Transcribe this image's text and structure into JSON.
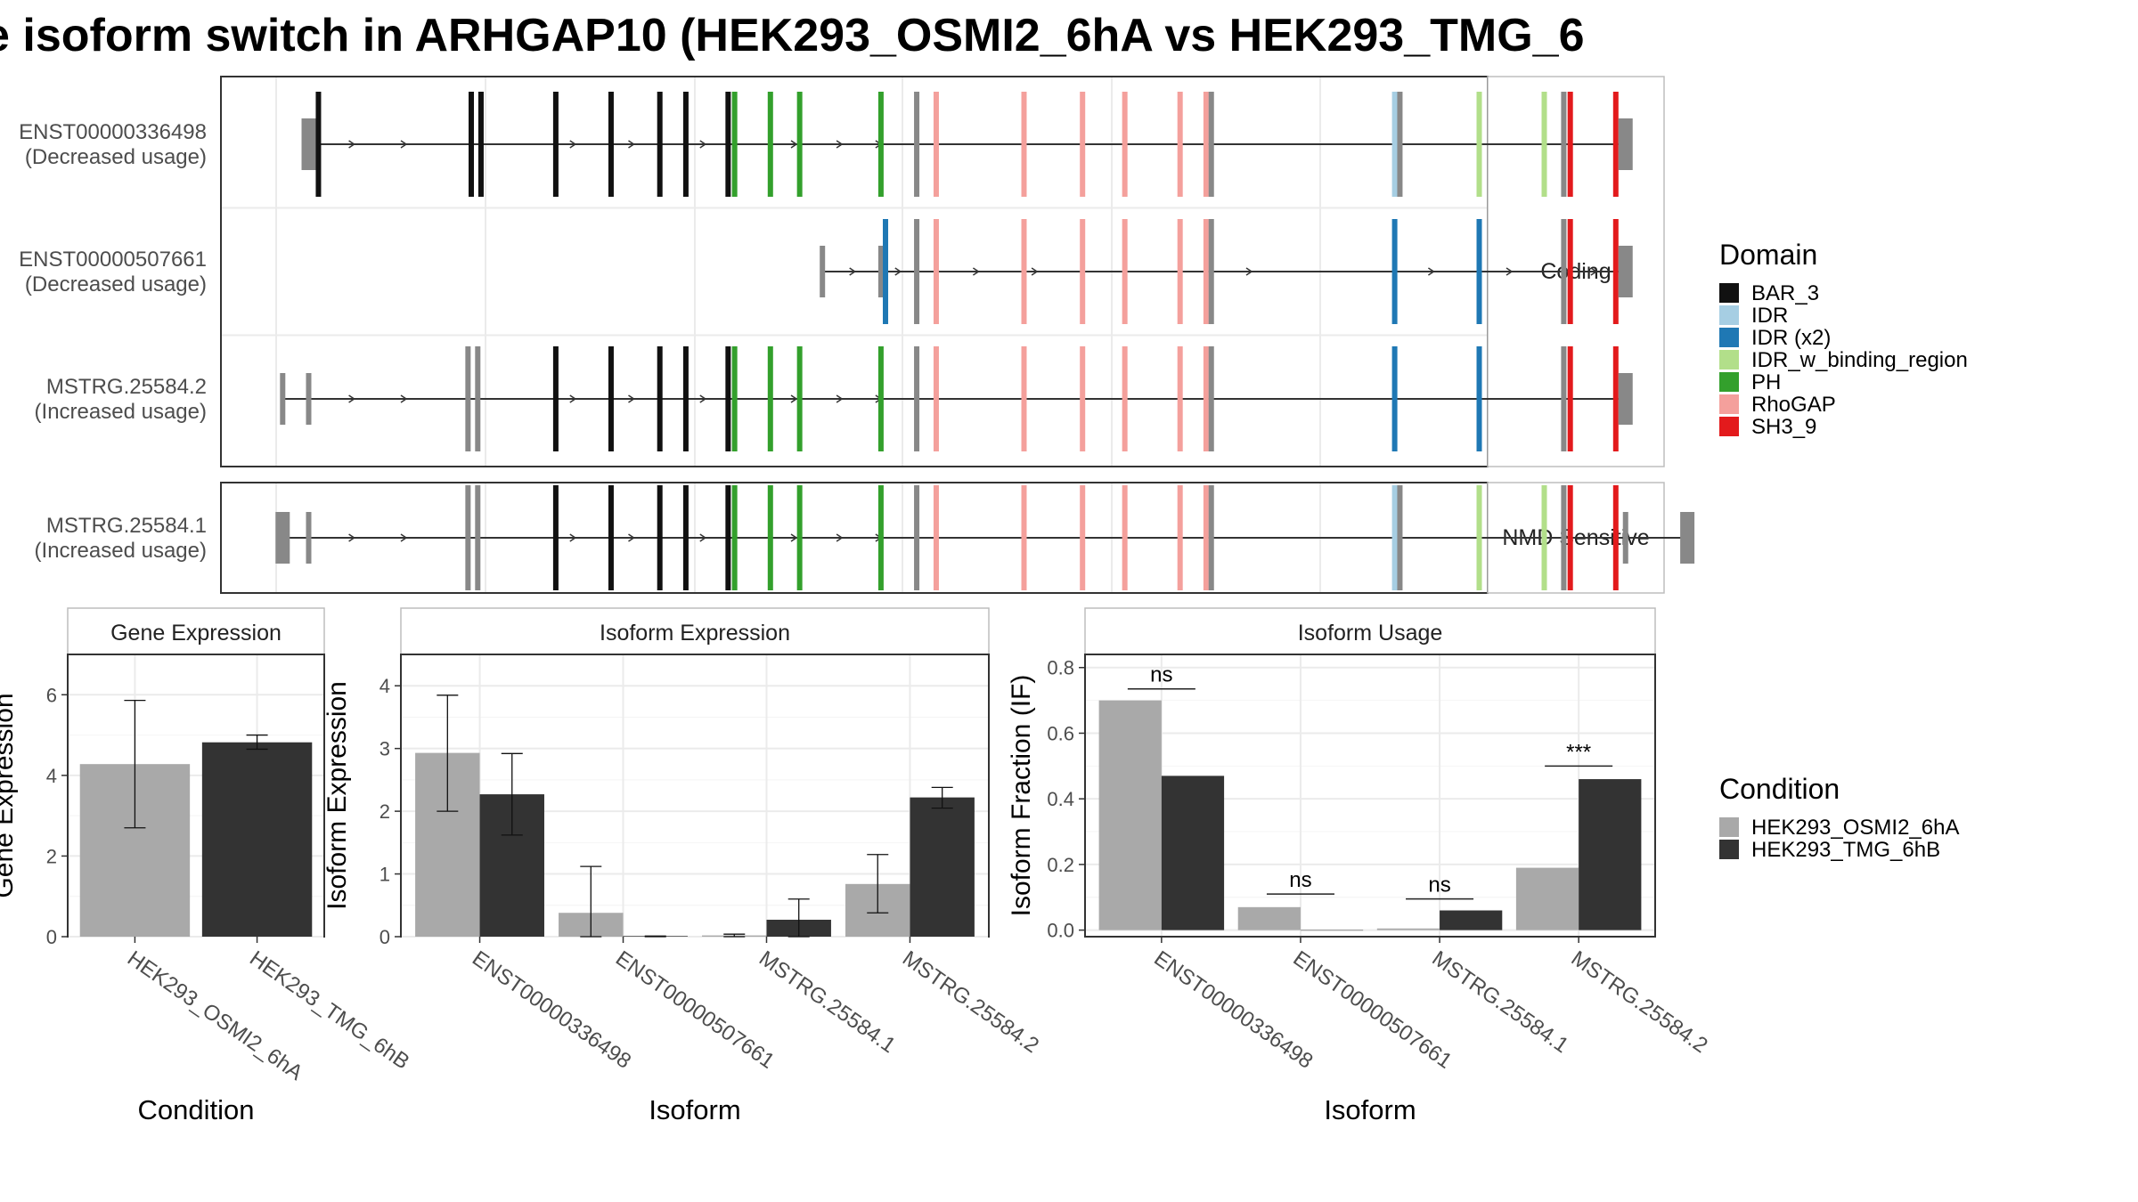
{
  "title": "e isoform switch in ARHGAP10 (HEK293_OSMI2_6hA vs HEK293_TMG_6",
  "colors": {
    "BAR_3": "#111111",
    "IDR": "#a6cee3",
    "IDR (x2)": "#1f78b4",
    "IDR_w_binding_region": "#b2df8a",
    "PH": "#33a02c",
    "RhoGAP": "#f4a09c",
    "SH3_9": "#e31a1c",
    "none": "#888888",
    "cond1": "#a9a9a9",
    "cond2": "#333333"
  },
  "structure": {
    "panels": [
      {
        "label": "Coding",
        "rows": [
          0,
          1,
          2
        ]
      },
      {
        "label": "NMD Sensitive",
        "rows": [
          3
        ]
      }
    ],
    "transcripts": [
      {
        "name": "ENST00000336498",
        "change": "(Decreased usage)",
        "start": 5,
        "end": 100,
        "arrows": [
          12,
          20,
          46,
          55,
          66,
          80,
          87,
          93
        ],
        "exons": [
          {
            "x": 5,
            "d": "none",
            "h": "utr"
          },
          {
            "x": 6.5,
            "d": "BAR_3"
          },
          {
            "x": 30,
            "d": "BAR_3"
          },
          {
            "x": 31.5,
            "d": "BAR_3"
          },
          {
            "x": 43,
            "d": "BAR_3"
          },
          {
            "x": 51.5,
            "d": "BAR_3"
          },
          {
            "x": 59,
            "d": "BAR_3"
          },
          {
            "x": 63,
            "d": "BAR_3"
          },
          {
            "x": 69.5,
            "d": "BAR_3"
          },
          {
            "x": 70.5,
            "d": "PH"
          },
          {
            "x": 76,
            "d": "PH"
          },
          {
            "x": 80.5,
            "d": "PH"
          },
          {
            "x": 93,
            "d": "PH"
          },
          {
            "x": 98.5,
            "d": "none"
          },
          {
            "x": 101.5,
            "d": "RhoGAP"
          },
          {
            "x": 115,
            "d": "RhoGAP"
          },
          {
            "x": 124,
            "d": "RhoGAP"
          },
          {
            "x": 130.5,
            "d": "RhoGAP"
          },
          {
            "x": 139,
            "d": "RhoGAP"
          },
          {
            "x": 143,
            "d": "RhoGAP"
          },
          {
            "x": 143.8,
            "d": "none"
          },
          {
            "x": 172,
            "d": "IDR"
          },
          {
            "x": 172.8,
            "d": "none"
          },
          {
            "x": 185,
            "d": "IDR_w_binding_region"
          },
          {
            "x": 195,
            "d": "IDR_w_binding_region"
          },
          {
            "x": 198,
            "d": "none"
          },
          {
            "x": 199,
            "d": "SH3_9"
          },
          {
            "x": 206,
            "d": "SH3_9"
          },
          {
            "x": 207.5,
            "d": "none",
            "h": "utr"
          }
        ]
      },
      {
        "name": "ENST00000507661",
        "change": "(Decreased usage)",
        "start": 84,
        "end": 100,
        "arrows": [
          89,
          96,
          108,
          117,
          150,
          178,
          190,
          203
        ],
        "exons": [
          {
            "x": 84,
            "d": "none",
            "h": "half"
          },
          {
            "x": 93,
            "d": "none",
            "h": "half"
          },
          {
            "x": 93.7,
            "d": "IDR (x2)"
          },
          {
            "x": 98.5,
            "d": "none"
          },
          {
            "x": 101.5,
            "d": "RhoGAP"
          },
          {
            "x": 115,
            "d": "RhoGAP"
          },
          {
            "x": 124,
            "d": "RhoGAP"
          },
          {
            "x": 130.5,
            "d": "RhoGAP"
          },
          {
            "x": 139,
            "d": "RhoGAP"
          },
          {
            "x": 143,
            "d": "RhoGAP"
          },
          {
            "x": 143.8,
            "d": "none"
          },
          {
            "x": 172,
            "d": "IDR (x2)"
          },
          {
            "x": 185,
            "d": "IDR (x2)"
          },
          {
            "x": 198,
            "d": "none"
          },
          {
            "x": 199,
            "d": "SH3_9"
          },
          {
            "x": 206,
            "d": "SH3_9"
          },
          {
            "x": 207.5,
            "d": "none",
            "h": "utr"
          }
        ]
      },
      {
        "name": "MSTRG.25584.2",
        "change": "(Increased usage)",
        "start": 1,
        "end": 100,
        "arrows": [
          12,
          20,
          46,
          55,
          66,
          80,
          87,
          93
        ],
        "exons": [
          {
            "x": 1,
            "d": "none",
            "h": "half"
          },
          {
            "x": 5,
            "d": "none",
            "h": "half"
          },
          {
            "x": 29.5,
            "d": "none"
          },
          {
            "x": 31,
            "d": "none"
          },
          {
            "x": 43,
            "d": "BAR_3"
          },
          {
            "x": 51.5,
            "d": "BAR_3"
          },
          {
            "x": 59,
            "d": "BAR_3"
          },
          {
            "x": 63,
            "d": "BAR_3"
          },
          {
            "x": 69.5,
            "d": "BAR_3"
          },
          {
            "x": 70.5,
            "d": "PH"
          },
          {
            "x": 76,
            "d": "PH"
          },
          {
            "x": 80.5,
            "d": "PH"
          },
          {
            "x": 93,
            "d": "PH"
          },
          {
            "x": 98.5,
            "d": "none"
          },
          {
            "x": 101.5,
            "d": "RhoGAP"
          },
          {
            "x": 115,
            "d": "RhoGAP"
          },
          {
            "x": 124,
            "d": "RhoGAP"
          },
          {
            "x": 130.5,
            "d": "RhoGAP"
          },
          {
            "x": 139,
            "d": "RhoGAP"
          },
          {
            "x": 143,
            "d": "RhoGAP"
          },
          {
            "x": 143.8,
            "d": "none"
          },
          {
            "x": 172,
            "d": "IDR (x2)"
          },
          {
            "x": 185,
            "d": "IDR (x2)"
          },
          {
            "x": 198,
            "d": "none"
          },
          {
            "x": 199,
            "d": "SH3_9"
          },
          {
            "x": 206,
            "d": "SH3_9"
          },
          {
            "x": 207.5,
            "d": "none",
            "h": "utr"
          }
        ]
      },
      {
        "name": "MSTRG.25584.1",
        "change": "(Increased usage)",
        "start": 1,
        "end": 100,
        "arrows": [
          12,
          20,
          46,
          55,
          66,
          80,
          87,
          93
        ],
        "exons": [
          {
            "x": 1,
            "d": "none",
            "h": "utr"
          },
          {
            "x": 5,
            "d": "none",
            "h": "half"
          },
          {
            "x": 29.5,
            "d": "none"
          },
          {
            "x": 31,
            "d": "none"
          },
          {
            "x": 43,
            "d": "BAR_3"
          },
          {
            "x": 51.5,
            "d": "BAR_3"
          },
          {
            "x": 59,
            "d": "BAR_3"
          },
          {
            "x": 63,
            "d": "BAR_3"
          },
          {
            "x": 69.5,
            "d": "BAR_3"
          },
          {
            "x": 70.5,
            "d": "PH"
          },
          {
            "x": 76,
            "d": "PH"
          },
          {
            "x": 80.5,
            "d": "PH"
          },
          {
            "x": 93,
            "d": "PH"
          },
          {
            "x": 98.5,
            "d": "none"
          },
          {
            "x": 101.5,
            "d": "RhoGAP"
          },
          {
            "x": 115,
            "d": "RhoGAP"
          },
          {
            "x": 124,
            "d": "RhoGAP"
          },
          {
            "x": 130.5,
            "d": "RhoGAP"
          },
          {
            "x": 139,
            "d": "RhoGAP"
          },
          {
            "x": 143,
            "d": "RhoGAP"
          },
          {
            "x": 143.8,
            "d": "none"
          },
          {
            "x": 172,
            "d": "IDR"
          },
          {
            "x": 172.8,
            "d": "none"
          },
          {
            "x": 185,
            "d": "IDR_w_binding_region"
          },
          {
            "x": 195,
            "d": "IDR_w_binding_region"
          },
          {
            "x": 198,
            "d": "none"
          },
          {
            "x": 199,
            "d": "SH3_9"
          },
          {
            "x": 206,
            "d": "SH3_9"
          },
          {
            "x": 207.5,
            "d": "none",
            "h": "half"
          },
          {
            "x": 217,
            "d": "none",
            "h": "utr"
          }
        ]
      }
    ]
  },
  "legend_domain": {
    "title": "Domain",
    "items": [
      "BAR_3",
      "IDR",
      "IDR (x2)",
      "IDR_w_binding_region",
      "PH",
      "RhoGAP",
      "SH3_9"
    ]
  },
  "legend_condition": {
    "title": "Condition",
    "items": [
      "HEK293_OSMI2_6hA",
      "HEK293_TMG_6hB"
    ]
  },
  "chart_data": [
    {
      "type": "bar",
      "title": "Gene Expression",
      "xlabel": "Condition",
      "ylabel": "Gene Expression",
      "ylim": [
        0,
        7
      ],
      "yticks": [
        0,
        2,
        4,
        6
      ],
      "categories": [
        "HEK293_OSMI2_6hA",
        "HEK293_TMG_6hB"
      ],
      "series": [
        {
          "name": "HEK293_OSMI2_6hA",
          "values": [
            4.28,
            null
          ],
          "err": [
            [
              2.7,
              5.86
            ],
            null
          ]
        },
        {
          "name": "HEK293_TMG_6hB",
          "values": [
            null,
            4.82
          ],
          "err": [
            null,
            [
              4.65,
              5.0
            ]
          ]
        }
      ]
    },
    {
      "type": "bar",
      "title": "Isoform Expression",
      "xlabel": "Isoform",
      "ylabel": "Isoform Expression",
      "ylim": [
        0,
        4.5
      ],
      "yticks": [
        0,
        1,
        2,
        3,
        4
      ],
      "categories": [
        "ENST00000336498",
        "ENST00000507661",
        "MSTRG.25584.1",
        "MSTRG.25584.2"
      ],
      "series": [
        {
          "name": "HEK293_OSMI2_6hA",
          "values": [
            2.93,
            0.38,
            0.02,
            0.84
          ],
          "err": [
            [
              2.0,
              3.85
            ],
            [
              0.0,
              1.12
            ],
            [
              0.0,
              0.04
            ],
            [
              0.38,
              1.31
            ]
          ]
        },
        {
          "name": "HEK293_TMG_6hB",
          "values": [
            2.27,
            0.01,
            0.27,
            2.22
          ],
          "err": [
            [
              1.62,
              2.92
            ],
            [
              0.0,
              0.01
            ],
            [
              0.0,
              0.6
            ],
            [
              2.05,
              2.38
            ]
          ]
        }
      ]
    },
    {
      "type": "bar",
      "title": "Isoform Usage",
      "xlabel": "Isoform",
      "ylabel": "Isoform Fraction (IF)",
      "ylim": [
        -0.02,
        0.84
      ],
      "yticks": [
        0.0,
        0.2,
        0.4,
        0.6,
        0.8
      ],
      "ytick_labels": [
        "0.0",
        "0.2",
        "0.4",
        "0.6",
        "0.8"
      ],
      "categories": [
        "ENST00000336498",
        "ENST00000507661",
        "MSTRG.25584.1",
        "MSTRG.25584.2"
      ],
      "series": [
        {
          "name": "HEK293_OSMI2_6hA",
          "values": [
            0.7,
            0.07,
            0.005,
            0.19
          ]
        },
        {
          "name": "HEK293_TMG_6hB",
          "values": [
            0.47,
            0.0,
            0.06,
            0.46
          ]
        }
      ],
      "annotations": [
        {
          "category": "ENST00000336498",
          "label": "ns",
          "y": 0.735
        },
        {
          "category": "ENST00000507661",
          "label": "ns",
          "y": 0.11
        },
        {
          "category": "MSTRG.25584.1",
          "label": "ns",
          "y": 0.095
        },
        {
          "category": "MSTRG.25584.2",
          "label": "***",
          "y": 0.5
        }
      ]
    }
  ]
}
